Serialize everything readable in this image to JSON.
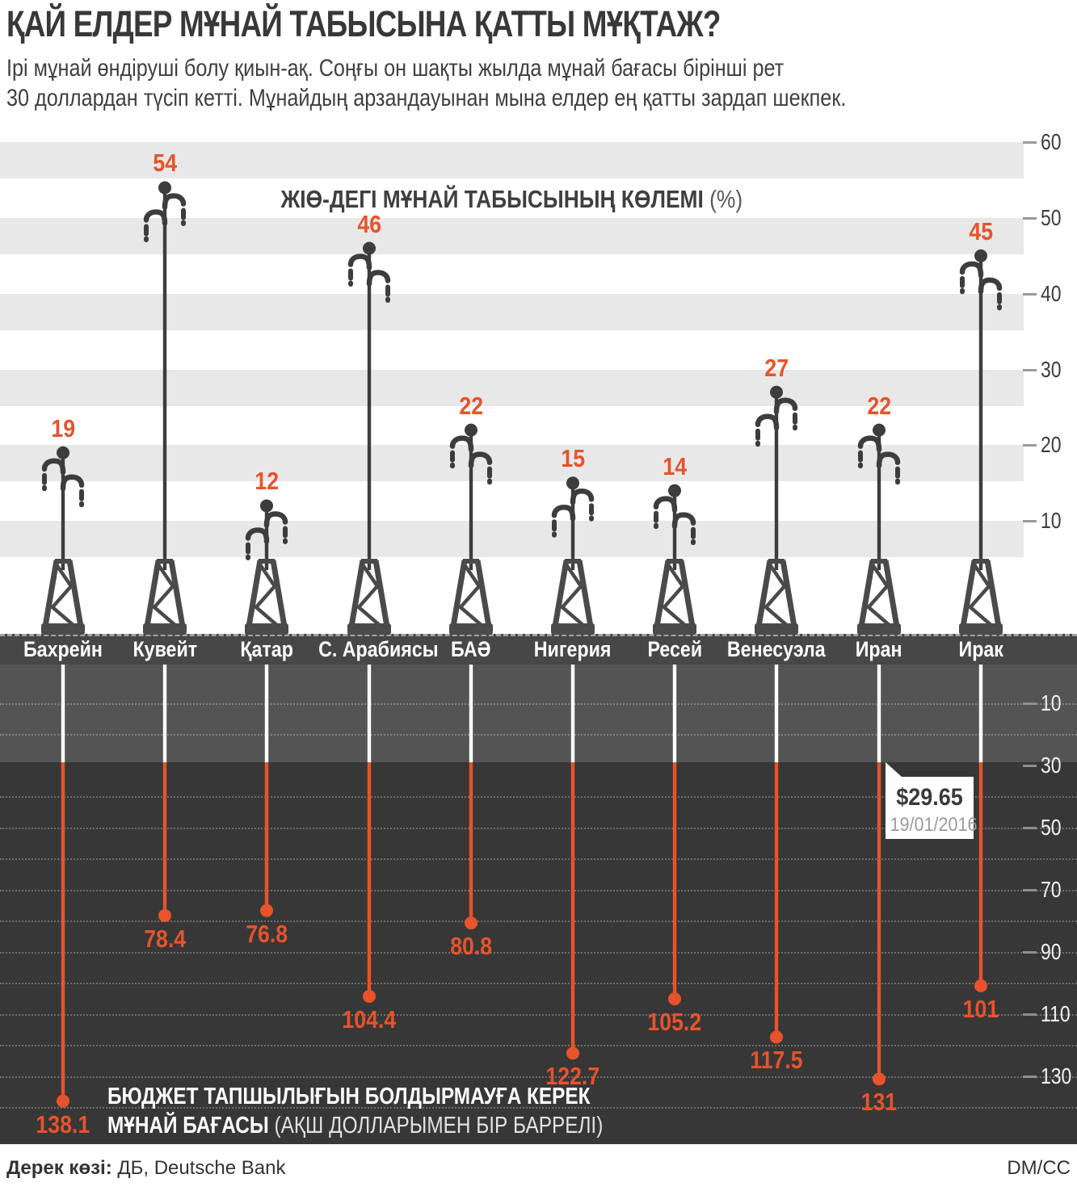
{
  "header": {
    "title": "ҚАЙ ЕЛДЕР МҰНАЙ ТАБЫСЫНА ҚАТТЫ МҰҚТАЖ?",
    "subtitle_line1": "Ірі мұнай өндіруші болу қиын-ақ. Соңғы он шақты жылда мұнай бағасы бірінші рет",
    "subtitle_line2": "30 доллардан түсіп кетті. Мұнайдың арзандауынан мына елдер ең қатты зардап шекпек."
  },
  "chart_data": {
    "type": "bar",
    "title_top": "ЖІӨ-ДЕГІ МҰНАЙ ТАБЫСЫНЫҢ КӨЛЕМІ",
    "title_top_suffix": "(%)",
    "categories": [
      "Бахрейн",
      "Кувейт",
      "Қатар",
      "С. Арабиясы",
      "БАӘ",
      "Нигерия",
      "Ресей",
      "Венесуэла",
      "Иран",
      "Ирак"
    ],
    "series": [
      {
        "name": "ЖІӨ-дегі мұнай табысының көлемі (%)",
        "values": [
          19,
          54,
          12,
          46,
          22,
          15,
          14,
          27,
          22,
          45
        ],
        "axis_ticks": [
          60,
          50,
          40,
          30,
          20,
          10
        ],
        "ylim": [
          0,
          60
        ],
        "direction": "up"
      },
      {
        "name": "Бюджет тапшылығын болдырмауға керек мұнай бағасы (АҚШ долларымен бір баррелі)",
        "values": [
          138.1,
          78.4,
          76.8,
          104.4,
          80.8,
          122.7,
          105.2,
          117.5,
          131,
          101
        ],
        "axis_ticks": [
          10,
          30,
          50,
          70,
          90,
          110,
          130
        ],
        "ylim": [
          0,
          145
        ],
        "direction": "down"
      }
    ],
    "high_hook_side": [
      "left",
      "right",
      "right",
      "left",
      "left",
      "right",
      "left",
      "right",
      "left",
      "left"
    ],
    "callout": {
      "price": "$29.65",
      "date": "19/01/2016",
      "at_value": 30
    },
    "caption_line1": "БЮДЖЕТ ТАПШЫЛЫҒЫН БОЛДЫРМАУҒА КЕРЕК",
    "caption_bold2": "МҰНАЙ БАҒАСЫ",
    "caption_light2": "(АҚШ ДОЛЛАРЫМЕН БІР БАРРЕЛІ)",
    "grid": "dotted-below-ground",
    "legend_position": "none",
    "colors": {
      "accent": "#E8532B",
      "derrick": "#3D3D3D",
      "tower": "#4A4A4A",
      "stripe": "#E8E8E8",
      "zone_strip": "#474747",
      "zone_mid": "#545454",
      "zone_dark": "#373737",
      "white_line": "#FFFFFF",
      "tick_dark": "#3D3D3D",
      "tick_light": "#F2F2F2"
    }
  },
  "footer": {
    "source_label": "Дерек көзі:",
    "source_value": " ДБ, Deutsche Bank",
    "credit": "DM/CC"
  }
}
